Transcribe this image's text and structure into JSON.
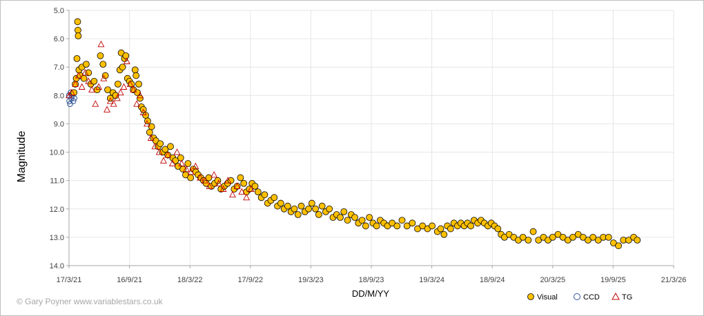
{
  "chart_data": {
    "type": "scatter",
    "xlabel": "DD/M/YY",
    "ylabel": "Magnitude",
    "x_ticks": [
      "17/3/21",
      "16/9/21",
      "18/3/22",
      "17/9/22",
      "19/3/23",
      "18/9/23",
      "19/3/24",
      "18/9/24",
      "20/3/25",
      "19/9/25",
      "21/3/26"
    ],
    "y_ticks": [
      "5.0",
      "6.0",
      "7.0",
      "8.0",
      "9.0",
      "10.0",
      "11.0",
      "12.0",
      "13.0",
      "14.0"
    ],
    "xlim": [
      "17/3/21",
      "21/3/26"
    ],
    "ylim": [
      5.0,
      14.0
    ],
    "y_inverted": true,
    "grid": true,
    "legend_position": "bottom-right",
    "series": [
      {
        "name": "Visual",
        "marker": "filled-circle",
        "color": "#ffc000",
        "edge_color": "#000000",
        "points": [
          [
            "2021-04-01",
            7.9
          ],
          [
            "2021-04-05",
            7.6
          ],
          [
            "2021-04-08",
            7.4
          ],
          [
            "2021-04-10",
            6.7
          ],
          [
            "2021-04-12",
            5.4
          ],
          [
            "2021-04-13",
            5.7
          ],
          [
            "2021-04-14",
            5.9
          ],
          [
            "2021-04-16",
            7.1
          ],
          [
            "2021-04-20",
            7.3
          ],
          [
            "2021-04-25",
            7.0
          ],
          [
            "2021-05-01",
            7.4
          ],
          [
            "2021-05-08",
            6.9
          ],
          [
            "2021-05-15",
            7.2
          ],
          [
            "2021-05-22",
            7.6
          ],
          [
            "2021-06-01",
            7.5
          ],
          [
            "2021-06-10",
            7.8
          ],
          [
            "2021-06-20",
            6.6
          ],
          [
            "2021-06-28",
            6.9
          ],
          [
            "2021-07-05",
            7.3
          ],
          [
            "2021-07-12",
            7.8
          ],
          [
            "2021-07-20",
            8.1
          ],
          [
            "2021-07-28",
            7.9
          ],
          [
            "2021-08-05",
            8.0
          ],
          [
            "2021-08-12",
            7.6
          ],
          [
            "2021-08-18",
            7.1
          ],
          [
            "2021-08-22",
            6.5
          ],
          [
            "2021-08-26",
            7.0
          ],
          [
            "2021-09-01",
            6.7
          ],
          [
            "2021-09-05",
            6.6
          ],
          [
            "2021-09-10",
            7.4
          ],
          [
            "2021-09-16",
            7.5
          ],
          [
            "2021-09-22",
            7.6
          ],
          [
            "2021-09-28",
            7.8
          ],
          [
            "2021-10-03",
            7.1
          ],
          [
            "2021-10-06",
            7.3
          ],
          [
            "2021-10-10",
            7.9
          ],
          [
            "2021-10-14",
            7.6
          ],
          [
            "2021-10-18",
            8.1
          ],
          [
            "2021-10-22",
            8.4
          ],
          [
            "2021-10-28",
            8.5
          ],
          [
            "2021-11-04",
            8.7
          ],
          [
            "2021-11-10",
            8.9
          ],
          [
            "2021-11-16",
            9.3
          ],
          [
            "2021-11-22",
            9.1
          ],
          [
            "2021-11-28",
            9.5
          ],
          [
            "2021-12-05",
            9.6
          ],
          [
            "2021-12-12",
            9.8
          ],
          [
            "2021-12-18",
            9.7
          ],
          [
            "2021-12-25",
            10.0
          ],
          [
            "2022-01-02",
            9.9
          ],
          [
            "2022-01-10",
            10.1
          ],
          [
            "2022-01-18",
            9.8
          ],
          [
            "2022-01-25",
            10.2
          ],
          [
            "2022-02-02",
            10.3
          ],
          [
            "2022-02-10",
            10.5
          ],
          [
            "2022-02-18",
            10.2
          ],
          [
            "2022-02-25",
            10.6
          ],
          [
            "2022-03-05",
            10.8
          ],
          [
            "2022-03-12",
            10.4
          ],
          [
            "2022-03-20",
            10.9
          ],
          [
            "2022-03-28",
            10.6
          ],
          [
            "2022-04-05",
            10.7
          ],
          [
            "2022-04-12",
            10.8
          ],
          [
            "2022-04-20",
            10.9
          ],
          [
            "2022-04-28",
            11.0
          ],
          [
            "2022-05-06",
            11.1
          ],
          [
            "2022-05-14",
            10.9
          ],
          [
            "2022-05-22",
            11.2
          ],
          [
            "2022-06-01",
            11.1
          ],
          [
            "2022-06-10",
            11.0
          ],
          [
            "2022-06-20",
            11.3
          ],
          [
            "2022-06-30",
            11.2
          ],
          [
            "2022-07-10",
            11.1
          ],
          [
            "2022-07-20",
            11.0
          ],
          [
            "2022-07-30",
            11.3
          ],
          [
            "2022-08-08",
            11.2
          ],
          [
            "2022-08-18",
            10.9
          ],
          [
            "2022-08-28",
            11.1
          ],
          [
            "2022-09-05",
            11.4
          ],
          [
            "2022-09-14",
            11.3
          ],
          [
            "2022-09-22",
            11.1
          ],
          [
            "2022-10-01",
            11.2
          ],
          [
            "2022-10-10",
            11.4
          ],
          [
            "2022-10-20",
            11.6
          ],
          [
            "2022-10-30",
            11.5
          ],
          [
            "2022-11-08",
            11.8
          ],
          [
            "2022-11-18",
            11.7
          ],
          [
            "2022-11-28",
            11.6
          ],
          [
            "2022-12-08",
            11.9
          ],
          [
            "2022-12-18",
            11.8
          ],
          [
            "2022-12-28",
            12.0
          ],
          [
            "2023-01-08",
            11.9
          ],
          [
            "2023-01-18",
            12.1
          ],
          [
            "2023-01-28",
            12.0
          ],
          [
            "2023-02-08",
            12.2
          ],
          [
            "2023-02-18",
            11.9
          ],
          [
            "2023-03-01",
            12.1
          ],
          [
            "2023-03-12",
            12.0
          ],
          [
            "2023-03-22",
            11.8
          ],
          [
            "2023-04-02",
            12.0
          ],
          [
            "2023-04-12",
            12.2
          ],
          [
            "2023-04-22",
            11.9
          ],
          [
            "2023-05-03",
            12.1
          ],
          [
            "2023-05-14",
            12.0
          ],
          [
            "2023-05-25",
            12.3
          ],
          [
            "2023-06-05",
            12.2
          ],
          [
            "2023-06-16",
            12.3
          ],
          [
            "2023-06-27",
            12.1
          ],
          [
            "2023-07-08",
            12.4
          ],
          [
            "2023-07-19",
            12.2
          ],
          [
            "2023-07-30",
            12.3
          ],
          [
            "2023-08-10",
            12.5
          ],
          [
            "2023-08-21",
            12.4
          ],
          [
            "2023-09-01",
            12.6
          ],
          [
            "2023-09-12",
            12.3
          ],
          [
            "2023-09-23",
            12.5
          ],
          [
            "2023-10-04",
            12.6
          ],
          [
            "2023-10-15",
            12.4
          ],
          [
            "2023-10-26",
            12.5
          ],
          [
            "2023-11-06",
            12.6
          ],
          [
            "2023-11-20",
            12.5
          ],
          [
            "2023-12-05",
            12.6
          ],
          [
            "2023-12-20",
            12.4
          ],
          [
            "2024-01-04",
            12.6
          ],
          [
            "2024-01-20",
            12.5
          ],
          [
            "2024-02-05",
            12.7
          ],
          [
            "2024-02-20",
            12.6
          ],
          [
            "2024-03-06",
            12.7
          ],
          [
            "2024-03-20",
            12.6
          ],
          [
            "2024-04-05",
            12.8
          ],
          [
            "2024-04-15",
            12.7
          ],
          [
            "2024-04-25",
            12.9
          ],
          [
            "2024-05-05",
            12.6
          ],
          [
            "2024-05-15",
            12.7
          ],
          [
            "2024-05-25",
            12.5
          ],
          [
            "2024-06-05",
            12.6
          ],
          [
            "2024-06-15",
            12.5
          ],
          [
            "2024-06-25",
            12.6
          ],
          [
            "2024-07-05",
            12.5
          ],
          [
            "2024-07-15",
            12.6
          ],
          [
            "2024-07-25",
            12.4
          ],
          [
            "2024-08-05",
            12.5
          ],
          [
            "2024-08-15",
            12.4
          ],
          [
            "2024-08-25",
            12.5
          ],
          [
            "2024-09-05",
            12.6
          ],
          [
            "2024-09-15",
            12.5
          ],
          [
            "2024-09-25",
            12.6
          ],
          [
            "2024-10-05",
            12.7
          ],
          [
            "2024-10-15",
            12.9
          ],
          [
            "2024-10-25",
            13.0
          ],
          [
            "2024-11-08",
            12.9
          ],
          [
            "2024-11-22",
            13.0
          ],
          [
            "2024-12-06",
            13.1
          ],
          [
            "2024-12-20",
            13.0
          ],
          [
            "2025-01-05",
            13.1
          ],
          [
            "2025-01-20",
            12.8
          ],
          [
            "2025-02-05",
            13.1
          ],
          [
            "2025-02-20",
            13.0
          ],
          [
            "2025-03-06",
            13.1
          ],
          [
            "2025-03-20",
            13.0
          ],
          [
            "2025-04-05",
            12.9
          ],
          [
            "2025-04-20",
            13.0
          ],
          [
            "2025-05-05",
            13.1
          ],
          [
            "2025-05-20",
            13.0
          ],
          [
            "2025-06-05",
            12.9
          ],
          [
            "2025-06-20",
            13.0
          ],
          [
            "2025-07-05",
            13.1
          ],
          [
            "2025-07-20",
            13.0
          ],
          [
            "2025-08-05",
            13.1
          ],
          [
            "2025-08-20",
            13.0
          ],
          [
            "2025-09-05",
            13.0
          ],
          [
            "2025-09-20",
            13.2
          ],
          [
            "2025-10-05",
            13.3
          ],
          [
            "2025-10-20",
            13.1
          ],
          [
            "2025-11-05",
            13.1
          ],
          [
            "2025-11-20",
            13.0
          ],
          [
            "2025-12-01",
            13.1
          ]
        ]
      },
      {
        "name": "CCD",
        "marker": "open-circle",
        "color": "#2e5597",
        "points": [
          [
            "2021-03-17",
            8.0
          ],
          [
            "2021-03-18",
            8.2
          ],
          [
            "2021-03-20",
            8.3
          ],
          [
            "2021-03-22",
            7.9
          ],
          [
            "2021-03-24",
            8.1
          ],
          [
            "2021-03-27",
            8.0
          ],
          [
            "2021-03-30",
            8.2
          ],
          [
            "2021-04-02",
            8.1
          ]
        ]
      },
      {
        "name": "TG",
        "marker": "open-triangle",
        "color": "#c00000",
        "points": [
          [
            "2021-03-17",
            8.0
          ],
          [
            "2021-03-25",
            7.9
          ],
          [
            "2021-04-05",
            7.6
          ],
          [
            "2021-04-15",
            7.3
          ],
          [
            "2021-04-25",
            7.7
          ],
          [
            "2021-05-05",
            7.2
          ],
          [
            "2021-05-15",
            7.5
          ],
          [
            "2021-05-25",
            7.8
          ],
          [
            "2021-06-05",
            8.3
          ],
          [
            "2021-06-15",
            7.7
          ],
          [
            "2021-06-22",
            6.2
          ],
          [
            "2021-06-30",
            7.4
          ],
          [
            "2021-07-10",
            8.5
          ],
          [
            "2021-07-20",
            8.2
          ],
          [
            "2021-07-30",
            8.3
          ],
          [
            "2021-08-10",
            8.1
          ],
          [
            "2021-08-20",
            7.9
          ],
          [
            "2021-08-30",
            7.7
          ],
          [
            "2021-09-08",
            6.8
          ],
          [
            "2021-09-18",
            7.6
          ],
          [
            "2021-09-28",
            7.8
          ],
          [
            "2021-10-08",
            8.3
          ],
          [
            "2021-10-18",
            8.0
          ],
          [
            "2021-10-28",
            8.6
          ],
          [
            "2021-11-08",
            9.0
          ],
          [
            "2021-11-20",
            9.5
          ],
          [
            "2021-12-02",
            9.8
          ],
          [
            "2021-12-15",
            10.0
          ],
          [
            "2021-12-28",
            10.3
          ],
          [
            "2022-01-10",
            10.1
          ],
          [
            "2022-01-24",
            10.4
          ],
          [
            "2022-02-07",
            10.0
          ],
          [
            "2022-02-21",
            10.4
          ],
          [
            "2022-03-07",
            10.6
          ],
          [
            "2022-03-21",
            10.7
          ],
          [
            "2022-04-04",
            10.5
          ],
          [
            "2022-04-18",
            10.9
          ],
          [
            "2022-05-02",
            11.0
          ],
          [
            "2022-05-16",
            11.2
          ],
          [
            "2022-05-30",
            10.8
          ],
          [
            "2022-06-13",
            11.1
          ],
          [
            "2022-06-27",
            11.3
          ],
          [
            "2022-07-11",
            11.0
          ],
          [
            "2022-07-25",
            11.5
          ],
          [
            "2022-08-08",
            11.2
          ],
          [
            "2022-08-22",
            11.4
          ],
          [
            "2022-09-05",
            11.6
          ],
          [
            "2022-09-19",
            11.3
          ]
        ]
      }
    ]
  },
  "credit": "© Gary Poyner www.variablestars.co.uk"
}
